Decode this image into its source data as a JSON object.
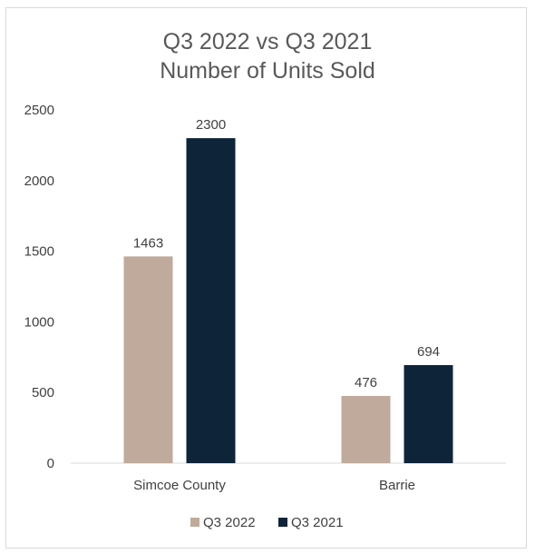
{
  "chart_data": {
    "type": "bar",
    "title": [
      "Q3 2022 vs Q3 2021",
      "Number of Units Sold"
    ],
    "categories": [
      "Simcoe County",
      "Barrie"
    ],
    "series": [
      {
        "name": "Q3 2022",
        "values": [
          1463,
          476
        ],
        "color": "#bfaa9b"
      },
      {
        "name": "Q3 2021",
        "values": [
          2300,
          694
        ],
        "color": "#0e2439"
      }
    ],
    "ylim": [
      0,
      2500
    ],
    "yticks": [
      "0",
      "500",
      "1000",
      "1500",
      "2000",
      "2500"
    ],
    "legend_position": "bottom",
    "grid": false
  }
}
